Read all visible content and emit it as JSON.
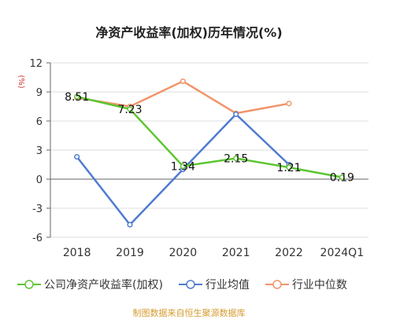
{
  "title": "净资产收益率(加权)历年情况(%)",
  "source_note": "制图数据来自恒生聚源数据库",
  "chart_data": {
    "type": "line",
    "title": "净资产收益率(加权)历年情况(%)",
    "ylabel": "(%)",
    "xlabel": "",
    "categories": [
      "2018",
      "2019",
      "2020",
      "2021",
      "2022",
      "2024Q1"
    ],
    "yticks": [
      "12",
      "9",
      "6",
      "3",
      "0",
      "-3",
      "-6"
    ],
    "ylim": [
      -6,
      12
    ],
    "grid": true,
    "legend_position": "bottom",
    "series": [
      {
        "name": "公司净资产收益率(加权)",
        "color": "#5cc631",
        "values": [
          8.51,
          7.23,
          1.34,
          2.15,
          1.21,
          0.19
        ],
        "labels": [
          "8.51",
          "7.23",
          "1.34",
          "2.15",
          "1.21",
          "0.19"
        ]
      },
      {
        "name": "行业均值",
        "color": "#4f7bd0",
        "values": [
          2.3,
          -4.7,
          1.0,
          6.7,
          1.5,
          null
        ]
      },
      {
        "name": "行业中位数",
        "color": "#f0956a",
        "values": [
          8.4,
          7.5,
          10.1,
          6.8,
          7.8,
          null
        ]
      }
    ]
  }
}
